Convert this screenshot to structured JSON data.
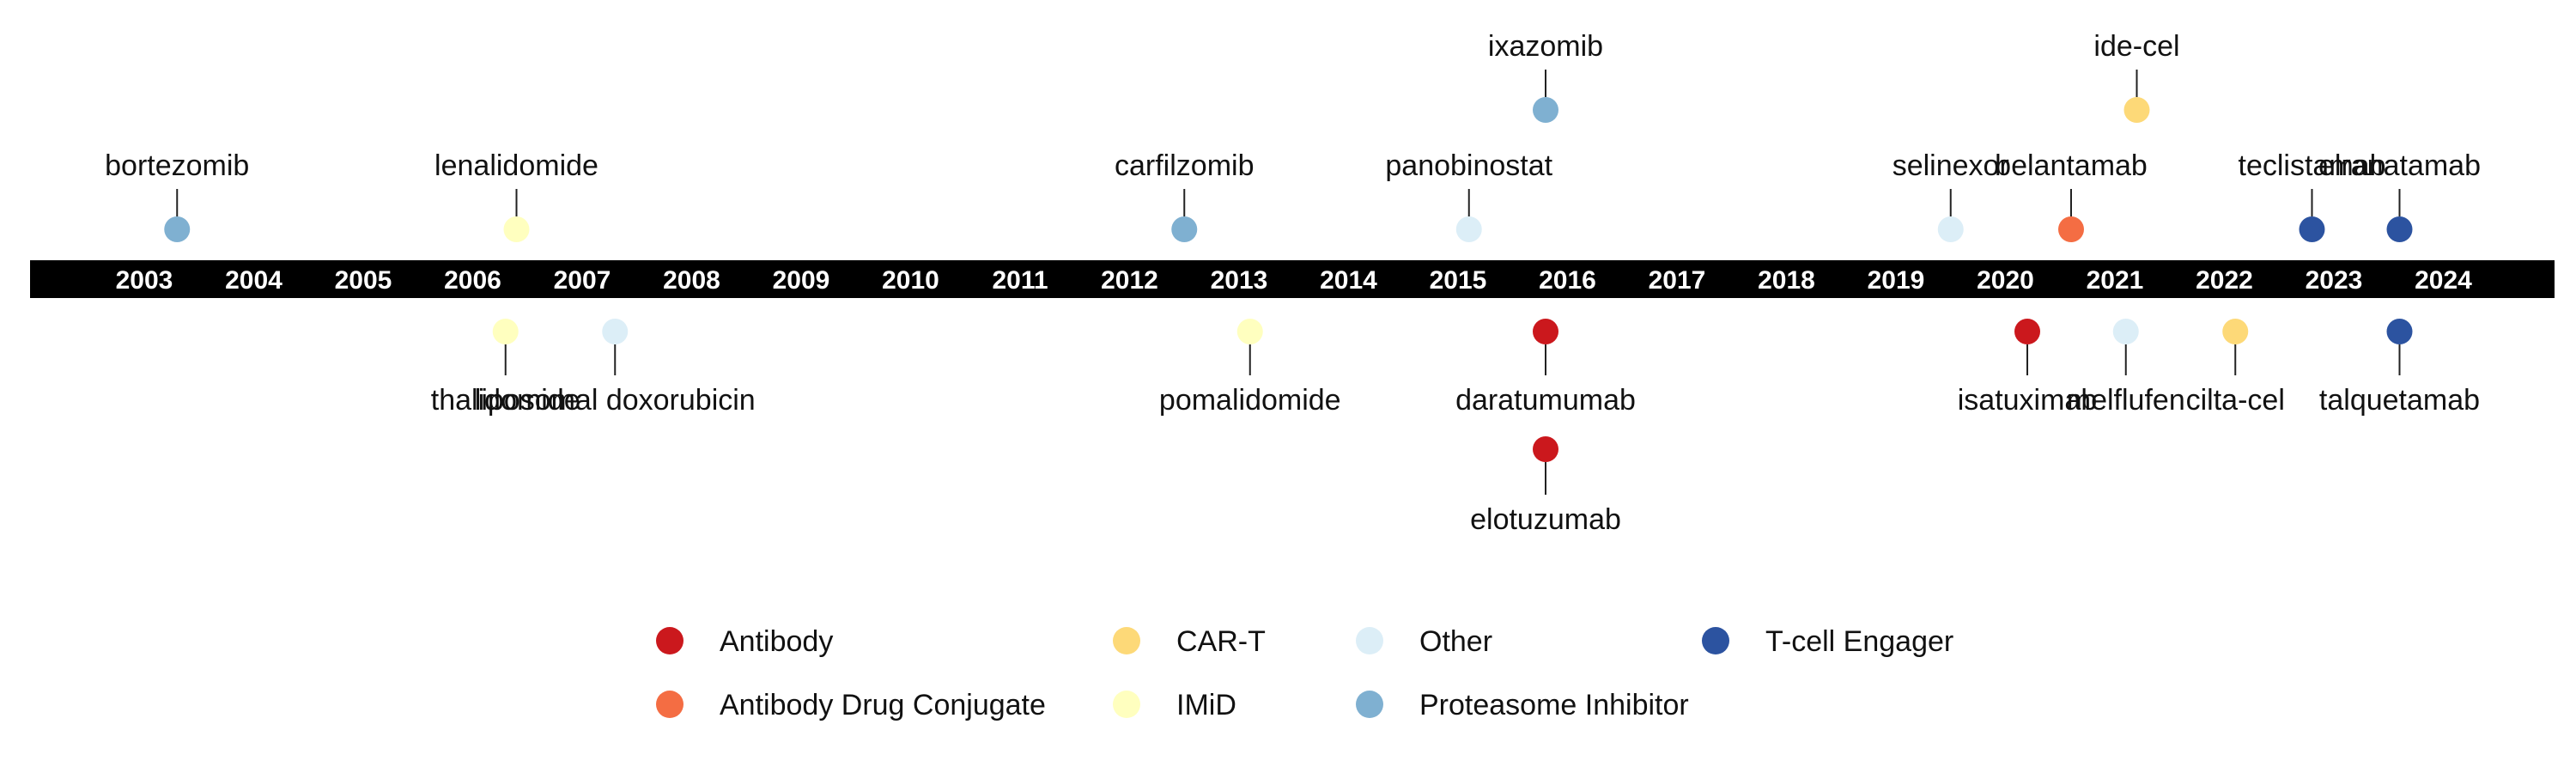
{
  "chart_data": {
    "type": "scatter",
    "title": "",
    "xlabel": "",
    "ylabel": "",
    "x_ticks": [
      "2003",
      "2004",
      "2005",
      "2006",
      "2007",
      "2008",
      "2009",
      "2010",
      "2011",
      "2012",
      "2013",
      "2014",
      "2015",
      "2016",
      "2017",
      "2018",
      "2019",
      "2020",
      "2021",
      "2022",
      "2023",
      "2024"
    ],
    "xlim": [
      2002,
      2025
    ],
    "tiers": [
      -2,
      -1,
      1,
      2
    ],
    "points": [
      {
        "name": "bortezomib",
        "year": 2003.3,
        "tier": 1,
        "category": "Proteasome Inhibitor"
      },
      {
        "name": "lenalidomide",
        "year": 2006.4,
        "tier": 1,
        "category": "IMiD"
      },
      {
        "name": "thalidomide",
        "year": 2006.3,
        "tier": -1,
        "category": "IMiD"
      },
      {
        "name": "liposomal doxorubicin",
        "year": 2007.3,
        "tier": -1,
        "category": "Other"
      },
      {
        "name": "carfilzomib",
        "year": 2012.5,
        "tier": 1,
        "category": "Proteasome Inhibitor"
      },
      {
        "name": "pomalidomide",
        "year": 2013.1,
        "tier": -1,
        "category": "IMiD"
      },
      {
        "name": "panobinostat",
        "year": 2015.1,
        "tier": 1,
        "category": "Other"
      },
      {
        "name": "ixazomib",
        "year": 2015.8,
        "tier": 2,
        "category": "Proteasome Inhibitor"
      },
      {
        "name": "daratumumab",
        "year": 2015.8,
        "tier": -1,
        "category": "Antibody"
      },
      {
        "name": "elotuzumab",
        "year": 2015.8,
        "tier": -2,
        "category": "Antibody"
      },
      {
        "name": "selinexor",
        "year": 2019.5,
        "tier": 1,
        "category": "Other"
      },
      {
        "name": "isatuximab",
        "year": 2020.2,
        "tier": -1,
        "category": "Antibody"
      },
      {
        "name": "belantamab",
        "year": 2020.6,
        "tier": 1,
        "category": "Antibody Drug Conjugate"
      },
      {
        "name": "ide-cel",
        "year": 2021.2,
        "tier": 2,
        "category": "CAR-T"
      },
      {
        "name": "melflufen",
        "year": 2021.1,
        "tier": -1,
        "category": "Other"
      },
      {
        "name": "cilta-cel",
        "year": 2022.1,
        "tier": -1,
        "category": "CAR-T"
      },
      {
        "name": "teclistamab",
        "year": 2022.8,
        "tier": 1,
        "category": "T-cell Engager"
      },
      {
        "name": "elranatamab",
        "year": 2023.6,
        "tier": 1,
        "category": "T-cell Engager"
      },
      {
        "name": "talquetamab",
        "year": 2023.6,
        "tier": -1,
        "category": "T-cell Engager"
      }
    ],
    "legend": {
      "placement": "bottom-center",
      "items": [
        {
          "label": "Antibody",
          "color": "#cb181d"
        },
        {
          "label": "Antibody Drug Conjugate",
          "color": "#f46d43"
        },
        {
          "label": "CAR-T",
          "color": "#fdd978"
        },
        {
          "label": "IMiD",
          "color": "#ffffbf"
        },
        {
          "label": "Other",
          "color": "#dceef7"
        },
        {
          "label": "Proteasome Inhibitor",
          "color": "#7fb0d1"
        },
        {
          "label": "T-cell Engager",
          "color": "#2c53a0"
        }
      ]
    },
    "axis_band_color": "#000000",
    "grid": false
  }
}
